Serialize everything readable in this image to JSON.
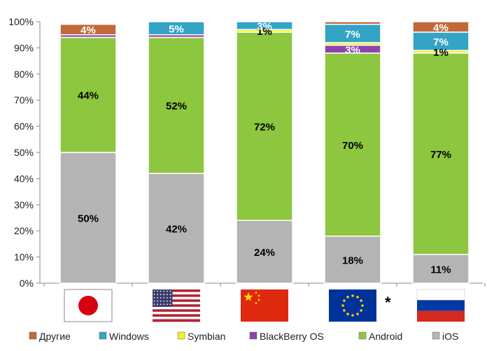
{
  "chart_data": {
    "type": "bar",
    "stacked": true,
    "percent": true,
    "categories": [
      "Japan",
      "USA",
      "China",
      "EU",
      "Russia"
    ],
    "flags": [
      "japan",
      "usa",
      "china",
      "eu",
      "russia"
    ],
    "eu_note": "*",
    "ylim": [
      0,
      100
    ],
    "yticks": [
      "0%",
      "10%",
      "20%",
      "30%",
      "40%",
      "50%",
      "60%",
      "70%",
      "80%",
      "90%",
      "100%"
    ],
    "grid": false,
    "legend_position": "bottom",
    "series": [
      {
        "name": "iOS",
        "color": "#b4b4b4",
        "values": [
          50,
          42,
          24,
          18,
          11
        ],
        "labels": [
          "50%",
          "42%",
          "24%",
          "18%",
          "11%"
        ],
        "label_color": "#000000"
      },
      {
        "name": "Android",
        "color": "#8dc63f",
        "values": [
          44,
          52,
          72,
          70,
          77
        ],
        "labels": [
          "44%",
          "52%",
          "72%",
          "70%",
          "77%"
        ],
        "label_color": "#000000"
      },
      {
        "name": "BlackBerry OS",
        "color": "#8e44ad",
        "values": [
          1,
          1,
          0,
          3,
          0
        ],
        "labels": [
          "",
          "",
          "",
          "3%",
          ""
        ],
        "label_color": "#ffffff"
      },
      {
        "name": "Symbian",
        "color": "#f2ef2c",
        "values": [
          0,
          0,
          1,
          1,
          1
        ],
        "labels": [
          "",
          "",
          "1%",
          "",
          "1%"
        ],
        "label_color": "#000000"
      },
      {
        "name": "Windows",
        "color": "#33a3c6",
        "values": [
          0,
          5,
          3,
          7,
          7
        ],
        "labels": [
          "",
          "5%",
          "3%",
          "7%",
          "7%"
        ],
        "label_color": "#ffffff"
      },
      {
        "name": "Другие",
        "color": "#c06a3a",
        "values": [
          4,
          0,
          0,
          1,
          4
        ],
        "labels": [
          "4%",
          "",
          "",
          "",
          "4%"
        ],
        "label_color": "#ffffff"
      }
    ],
    "legend_order": [
      "Другие",
      "Windows",
      "Symbian",
      "BlackBerry OS",
      "Android",
      "iOS"
    ]
  }
}
